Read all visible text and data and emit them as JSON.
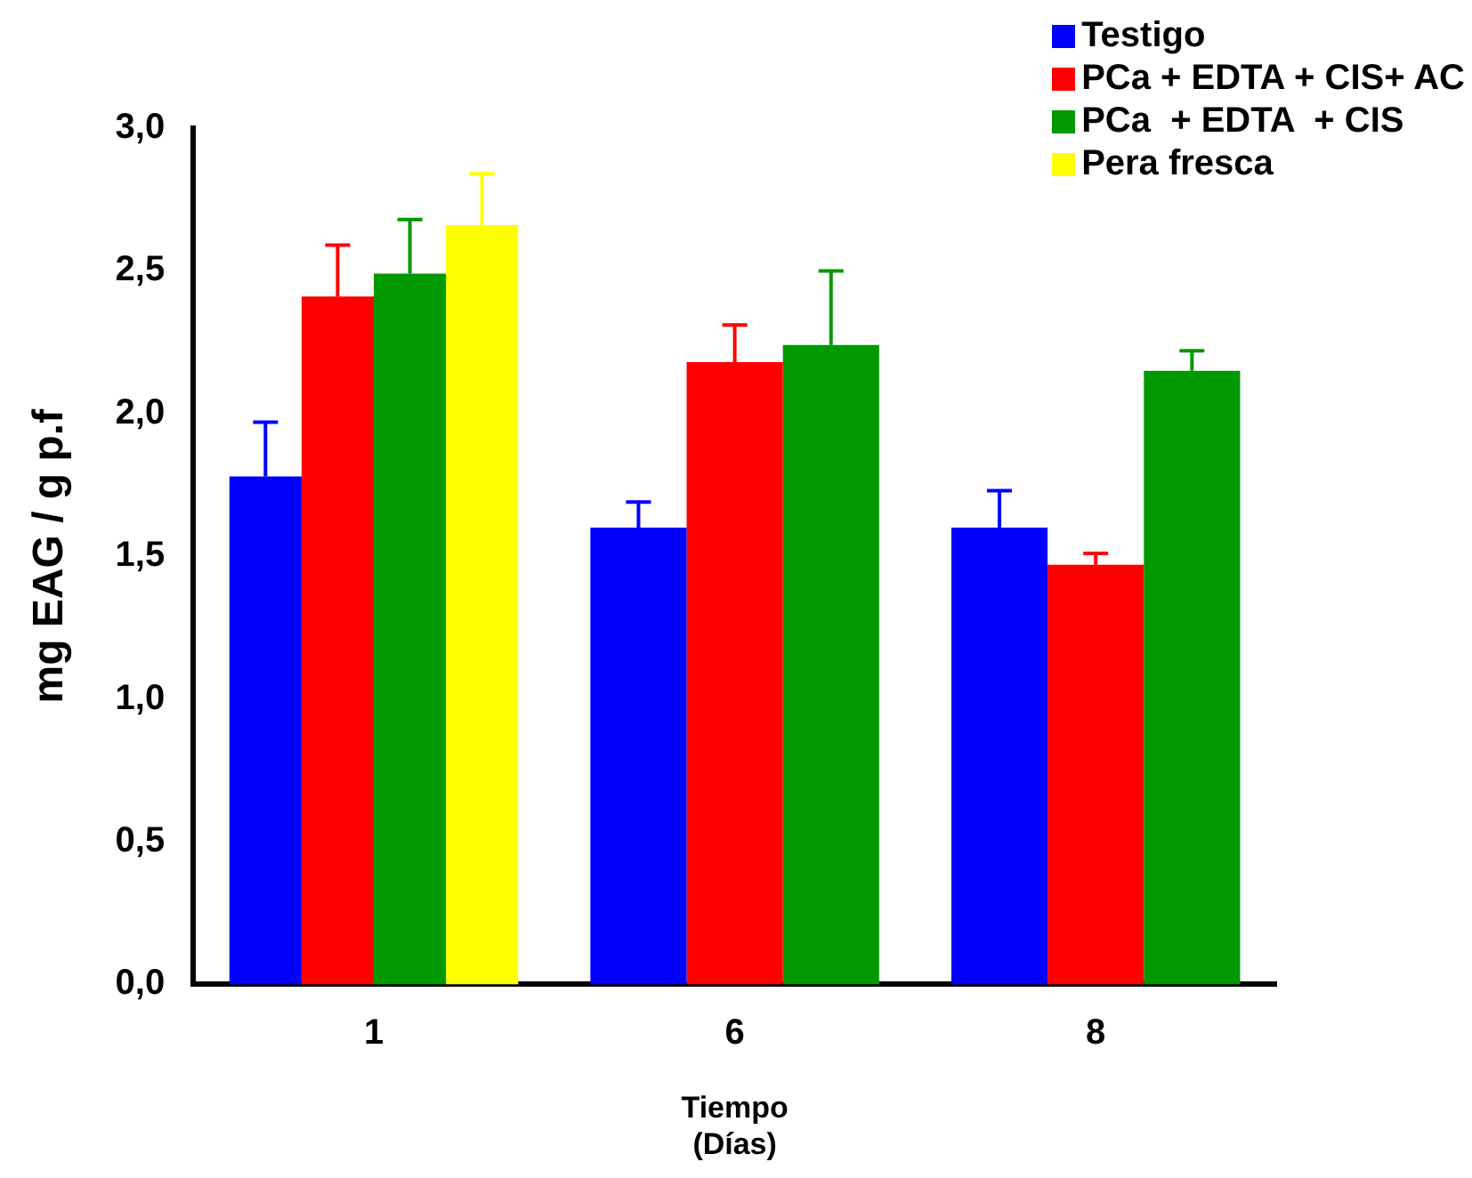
{
  "chart_data": {
    "type": "bar",
    "xlabel": "Tiempo\n(Días)",
    "ylabel": "mg EAG / g p.f",
    "categories": [
      "1",
      "6",
      "8"
    ],
    "series": [
      {
        "name": "Testigo",
        "color": "#0000ff",
        "values": [
          1.78,
          1.6,
          1.6
        ],
        "errors": [
          [
            1.78,
            1.97
          ],
          [
            1.6,
            1.69
          ],
          [
            1.6,
            1.73
          ]
        ]
      },
      {
        "name": "PCa + EDTA + CIS+ AC",
        "color": "#ff0000",
        "values": [
          2.41,
          2.18,
          1.47
        ],
        "errors": [
          [
            2.41,
            2.59
          ],
          [
            2.18,
            2.31
          ],
          [
            1.47,
            1.51
          ]
        ]
      },
      {
        "name": "PCa  + EDTA  + CIS",
        "color": "#009900",
        "values": [
          2.49,
          2.24,
          2.15
        ],
        "errors": [
          [
            2.49,
            2.68
          ],
          [
            2.24,
            2.5
          ],
          [
            2.15,
            2.22
          ]
        ]
      },
      {
        "name": "Pera fresca",
        "color": "#ffff00",
        "values": [
          2.66,
          null,
          null
        ],
        "errors": [
          [
            2.66,
            2.84
          ],
          null,
          null
        ]
      }
    ],
    "ylim": [
      0,
      3
    ],
    "yticks": [
      {
        "value": 0,
        "label": "0,0"
      },
      {
        "value": 0.5,
        "label": "0,5"
      },
      {
        "value": 1,
        "label": "1,0"
      },
      {
        "value": 1.5,
        "label": "1,5"
      },
      {
        "value": 2,
        "label": "2,0"
      },
      {
        "value": 2.5,
        "label": "2,5"
      },
      {
        "value": 3,
        "label": "3,0"
      }
    ],
    "grid": false,
    "legend": "top right"
  }
}
